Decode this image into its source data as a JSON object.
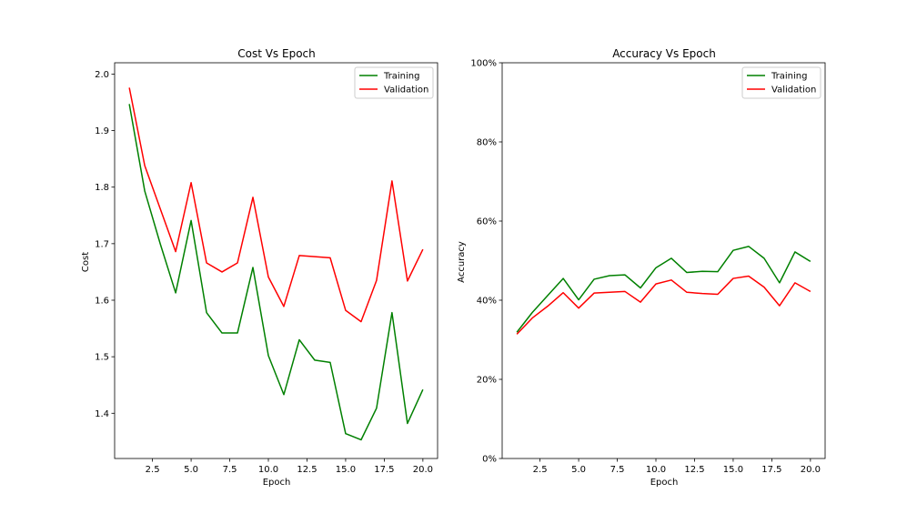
{
  "chart_data": [
    {
      "type": "line",
      "title": "Cost Vs Epoch",
      "xlabel": "Epoch",
      "ylabel": "Cost",
      "x": [
        1,
        2,
        3,
        4,
        5,
        6,
        7,
        8,
        9,
        10,
        11,
        12,
        13,
        14,
        15,
        16,
        17,
        18,
        19,
        20
      ],
      "xlim": [
        0.05,
        20.95
      ],
      "ylim": [
        1.32,
        2.02
      ],
      "xticks": [
        2.5,
        5.0,
        7.5,
        10.0,
        12.5,
        15.0,
        17.5,
        20.0
      ],
      "xtick_labels": [
        "2.5",
        "5.0",
        "7.5",
        "10.0",
        "12.5",
        "15.0",
        "17.5",
        "20.0"
      ],
      "yticks": [
        1.4,
        1.5,
        1.6,
        1.7,
        1.8,
        1.9,
        2.0
      ],
      "ytick_labels": [
        "1.4",
        "1.5",
        "1.6",
        "1.7",
        "1.8",
        "1.9",
        "2.0"
      ],
      "grid": false,
      "legend": "top-right",
      "series": [
        {
          "name": "Training",
          "color": "#008000",
          "values": [
            1.947,
            1.793,
            1.7,
            1.613,
            1.741,
            1.578,
            1.542,
            1.542,
            1.658,
            1.502,
            1.433,
            1.53,
            1.494,
            1.49,
            1.364,
            1.353,
            1.409,
            1.578,
            1.382,
            1.442
          ]
        },
        {
          "name": "Validation",
          "color": "#ff0000",
          "values": [
            1.976,
            1.838,
            1.762,
            1.686,
            1.808,
            1.666,
            1.65,
            1.666,
            1.782,
            1.641,
            1.589,
            1.679,
            1.677,
            1.675,
            1.582,
            1.562,
            1.635,
            1.811,
            1.634,
            1.69
          ]
        }
      ]
    },
    {
      "type": "line",
      "title": "Accuracy Vs Epoch",
      "xlabel": "Epoch",
      "ylabel": "Accuracy",
      "x": [
        1,
        2,
        3,
        4,
        5,
        6,
        7,
        8,
        9,
        10,
        11,
        12,
        13,
        14,
        15,
        16,
        17,
        18,
        19,
        20
      ],
      "xlim": [
        0.05,
        20.95
      ],
      "ylim": [
        0,
        100
      ],
      "xticks": [
        2.5,
        5.0,
        7.5,
        10.0,
        12.5,
        15.0,
        17.5,
        20.0
      ],
      "xtick_labels": [
        "2.5",
        "5.0",
        "7.5",
        "10.0",
        "12.5",
        "15.0",
        "17.5",
        "20.0"
      ],
      "yticks": [
        0,
        20,
        40,
        60,
        80,
        100
      ],
      "ytick_labels": [
        "0%",
        "20%",
        "40%",
        "60%",
        "80%",
        "100%"
      ],
      "grid": false,
      "legend": "top-right",
      "series": [
        {
          "name": "Training",
          "color": "#008000",
          "values": [
            31.9,
            36.9,
            41.2,
            45.5,
            40.1,
            45.3,
            46.2,
            46.4,
            43.1,
            48.2,
            50.6,
            47.0,
            47.3,
            47.2,
            52.6,
            53.6,
            50.6,
            44.4,
            52.2,
            49.8
          ]
        },
        {
          "name": "Validation",
          "color": "#ff0000",
          "values": [
            31.4,
            35.5,
            38.5,
            41.9,
            38.0,
            41.8,
            42.0,
            42.2,
            39.5,
            44.1,
            45.1,
            42.0,
            41.7,
            41.5,
            45.5,
            46.1,
            43.3,
            38.6,
            44.4,
            42.2
          ]
        }
      ]
    }
  ]
}
